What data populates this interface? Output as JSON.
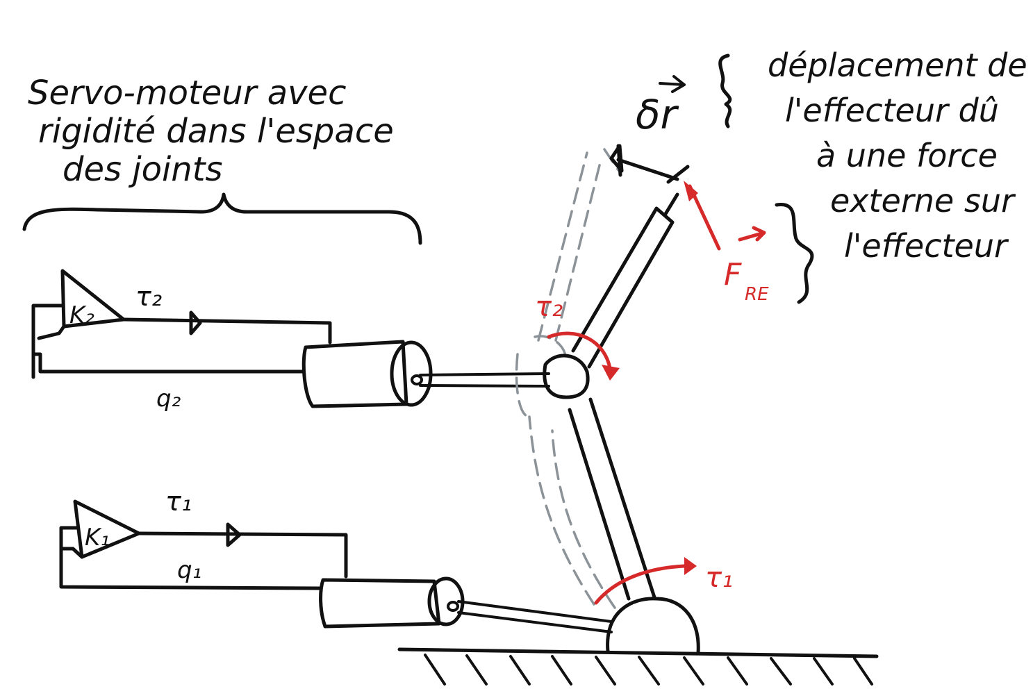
{
  "labels": {
    "servo_title_line1": "Servo-moteur avec",
    "servo_title_line2": "rigidité dans l'espace",
    "servo_title_line3": "des joints",
    "k2": "K₂",
    "k1": "K₁",
    "tau2_servo": "τ₂",
    "tau1_servo": "τ₁",
    "q2": "q₂",
    "q1": "q₁",
    "delta_r": "δr",
    "displacement_line1": "déplacement de",
    "displacement_line2": "l'effecteur dû",
    "displacement_line3": "à une force",
    "displacement_line4": "externe sur",
    "displacement_line5": "l'effecteur",
    "force": "F",
    "force_sub": "RE",
    "tau2_joint": "τ₂",
    "tau1_joint": "τ₁"
  },
  "colors": {
    "ink": "#111111",
    "red_annotation": "#d62a2a",
    "ghost_arm": "#8c9398"
  }
}
